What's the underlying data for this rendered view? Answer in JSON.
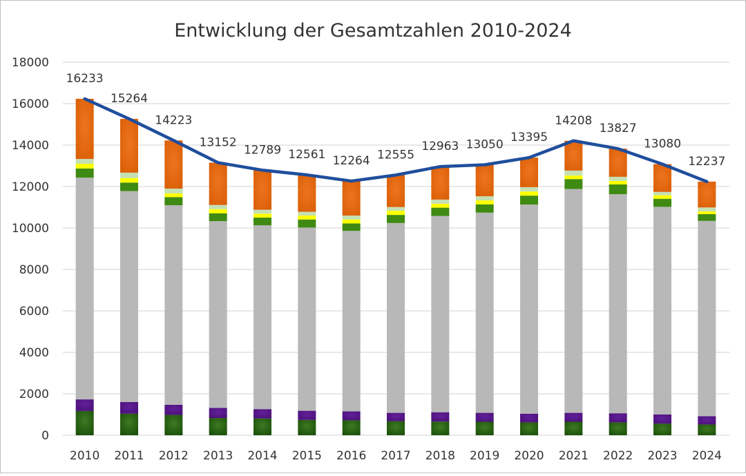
{
  "chart_data": {
    "type": "bar",
    "stacked": true,
    "title": "Entwicklung der Gesamtzahlen 2010-2024",
    "xlabel": "",
    "ylabel": "",
    "ylim": [
      0,
      18000
    ],
    "yticks": [
      0,
      2000,
      4000,
      6000,
      8000,
      10000,
      12000,
      14000,
      16000,
      18000
    ],
    "grid": true,
    "legend": "none",
    "categories": [
      "2010",
      "2011",
      "2012",
      "2013",
      "2014",
      "2015",
      "2016",
      "2017",
      "2018",
      "2019",
      "2020",
      "2021",
      "2022",
      "2023",
      "2024"
    ],
    "series": [
      {
        "color": "#2e6b14",
        "values": [
          1170,
          1040,
          980,
          830,
          810,
          740,
          720,
          680,
          660,
          650,
          620,
          650,
          620,
          560,
          520
        ]
      },
      {
        "color": "#5b1a8e",
        "values": [
          560,
          560,
          490,
          490,
          450,
          440,
          430,
          400,
          450,
          430,
          420,
          430,
          440,
          440,
          400
        ]
      },
      {
        "color": "#b8b8b8",
        "values": [
          10700,
          10180,
          9630,
          9010,
          8870,
          8840,
          8710,
          9160,
          9470,
          9660,
          10090,
          10800,
          10570,
          10020,
          9420
        ]
      },
      {
        "color": "#3f8a12",
        "values": [
          440,
          410,
          390,
          380,
          370,
          390,
          360,
          390,
          400,
          400,
          430,
          480,
          470,
          390,
          330
        ]
      },
      {
        "color": "#ffff00",
        "values": [
          230,
          220,
          180,
          200,
          190,
          190,
          190,
          200,
          190,
          190,
          200,
          170,
          170,
          170,
          130
        ]
      },
      {
        "color": "#c5e0b4",
        "values": [
          230,
          260,
          230,
          200,
          190,
          180,
          190,
          180,
          200,
          200,
          210,
          240,
          200,
          160,
          190
        ]
      },
      {
        "color": "#e46c0a",
        "values": [
          2903,
          2594,
          2323,
          2042,
          1909,
          1781,
          1664,
          1545,
          1593,
          1520,
          1425,
          1438,
          1357,
          1340,
          1247
        ]
      }
    ],
    "line": {
      "type": "line",
      "color": "#1f4e9c",
      "values": [
        16233,
        15264,
        14223,
        13152,
        12789,
        12561,
        12264,
        12555,
        12963,
        13050,
        13395,
        14208,
        13827,
        13080,
        12237
      ],
      "labels": [
        "16233",
        "15264",
        "14223",
        "13152",
        "12789",
        "12561",
        "12264",
        "12555",
        "12963",
        "13050",
        "13395",
        "14208",
        "13827",
        "13080",
        "12237"
      ]
    }
  }
}
